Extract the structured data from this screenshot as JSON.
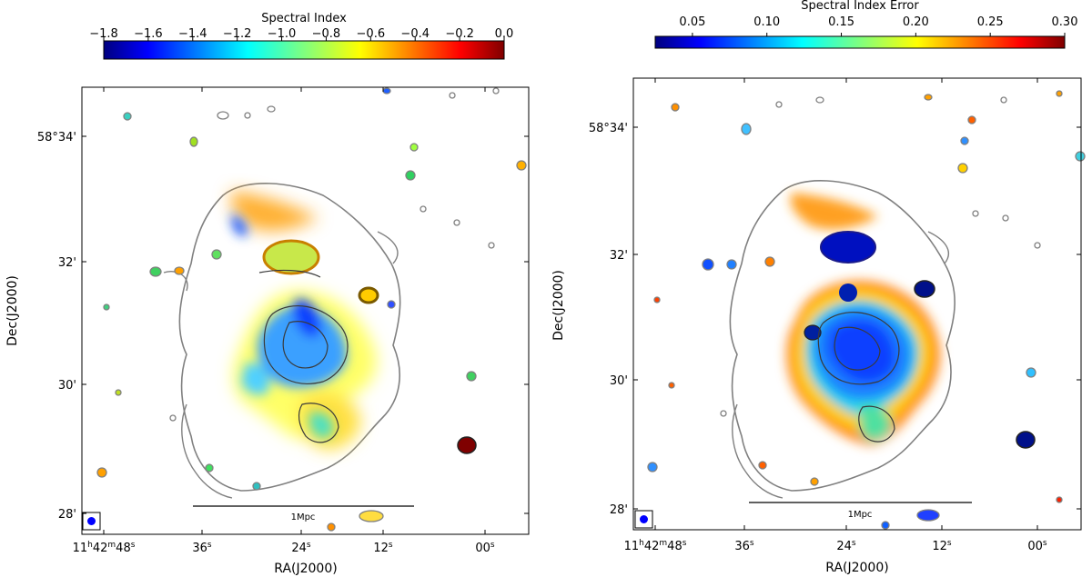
{
  "panels": [
    {
      "id": "spectral-index",
      "colorbar": {
        "label": "Spectral Index",
        "ticks": [
          "−1.8",
          "−1.6",
          "−1.4",
          "−1.2",
          "−1.0",
          "−0.8",
          "−0.6",
          "−0.4",
          "−0.2",
          "0.0"
        ],
        "tick_values": [
          -1.8,
          -1.6,
          -1.4,
          -1.2,
          -1.0,
          -0.8,
          -0.6,
          -0.4,
          -0.2,
          0.0
        ],
        "range": [
          -1.8,
          0.0
        ],
        "colormap": "jet"
      },
      "ra_ticks": [
        "11h42m48s",
        "36s",
        "24s",
        "12s",
        "00s"
      ],
      "dec_ticks": [
        "58°34'",
        "32'",
        "30'",
        "28'"
      ],
      "xlabel": "RA(J2000)",
      "ylabel": "Dec(J2000)",
      "scalebar": "1Mpc"
    },
    {
      "id": "spectral-index-error",
      "colorbar": {
        "label": "Spectral Index Error",
        "ticks": [
          "0.05",
          "0.10",
          "0.15",
          "0.20",
          "0.25",
          "0.30"
        ],
        "tick_values": [
          0.05,
          0.1,
          0.15,
          0.2,
          0.25,
          0.3
        ],
        "range": [
          0.025,
          0.3
        ],
        "colormap": "jet"
      },
      "ra_ticks": [
        "11h42m48s",
        "36s",
        "24s",
        "12s",
        "00s"
      ],
      "dec_ticks": [
        "58°34'",
        "32'",
        "30'",
        "28'"
      ],
      "xlabel": "RA(J2000)",
      "ylabel": "Dec(J2000)",
      "scalebar": "1Mpc"
    }
  ],
  "colors": {
    "contour": "#808080",
    "contour_inner": "#3a3a3a",
    "beam": "#0000ff",
    "jet": [
      "#00007f",
      "#0000ff",
      "#007fff",
      "#00ffff",
      "#7fff7f",
      "#ffff00",
      "#ff7f00",
      "#ff0000",
      "#7f0000"
    ]
  }
}
